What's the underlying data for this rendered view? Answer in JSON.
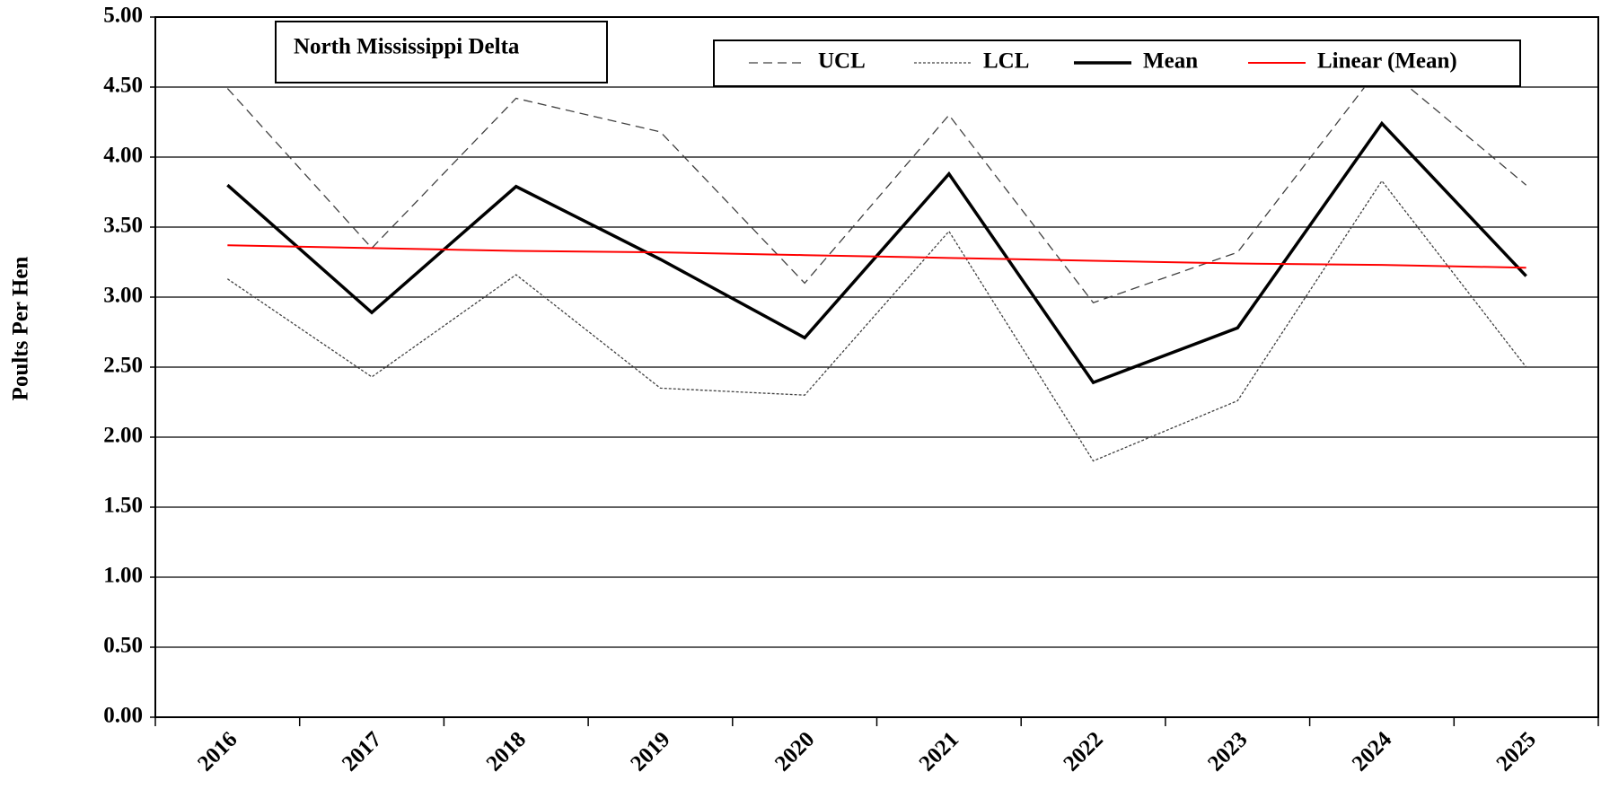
{
  "chart_data": {
    "type": "line",
    "annotation": "North Mississippi Delta",
    "y_label": "Poults Per Hen",
    "categories": [
      "2016",
      "2017",
      "2018",
      "2019",
      "2020",
      "2021",
      "2022",
      "2023",
      "2024",
      "2025"
    ],
    "series": [
      {
        "name": "UCL",
        "color": "#404040",
        "dash": "dashed",
        "values": [
          4.49,
          3.35,
          4.42,
          4.18,
          3.1,
          4.3,
          2.96,
          3.32,
          4.66,
          3.8
        ]
      },
      {
        "name": "LCL",
        "color": "#404040",
        "dash": "dotted",
        "values": [
          3.13,
          2.43,
          3.16,
          2.35,
          2.3,
          3.47,
          1.83,
          2.26,
          3.83,
          2.5
        ]
      },
      {
        "name": "Mean",
        "color": "#000000",
        "dash": "solid",
        "values": [
          3.8,
          2.89,
          3.79,
          3.27,
          2.71,
          3.88,
          2.39,
          2.78,
          4.24,
          3.15
        ]
      },
      {
        "name": "Linear (Mean)",
        "color": "#ff0000",
        "dash": "solid",
        "values": [
          3.37,
          3.35,
          3.33,
          3.32,
          3.3,
          3.28,
          3.26,
          3.24,
          3.23,
          3.21
        ]
      }
    ],
    "ylim": [
      0,
      5
    ],
    "yticks": [
      {
        "value": 0,
        "label": "0.00"
      },
      {
        "value": 0.5,
        "label": "0.50"
      },
      {
        "value": 1,
        "label": "1.00"
      },
      {
        "value": 1.5,
        "label": "1.50"
      },
      {
        "value": 2,
        "label": "2.00"
      },
      {
        "value": 2.5,
        "label": "2.50"
      },
      {
        "value": 3,
        "label": "3.00"
      },
      {
        "value": 3.5,
        "label": "3.50"
      },
      {
        "value": 4,
        "label": "4.00"
      },
      {
        "value": 4.5,
        "label": "4.50"
      },
      {
        "value": 5,
        "label": "5.00"
      }
    ],
    "grid": true
  }
}
